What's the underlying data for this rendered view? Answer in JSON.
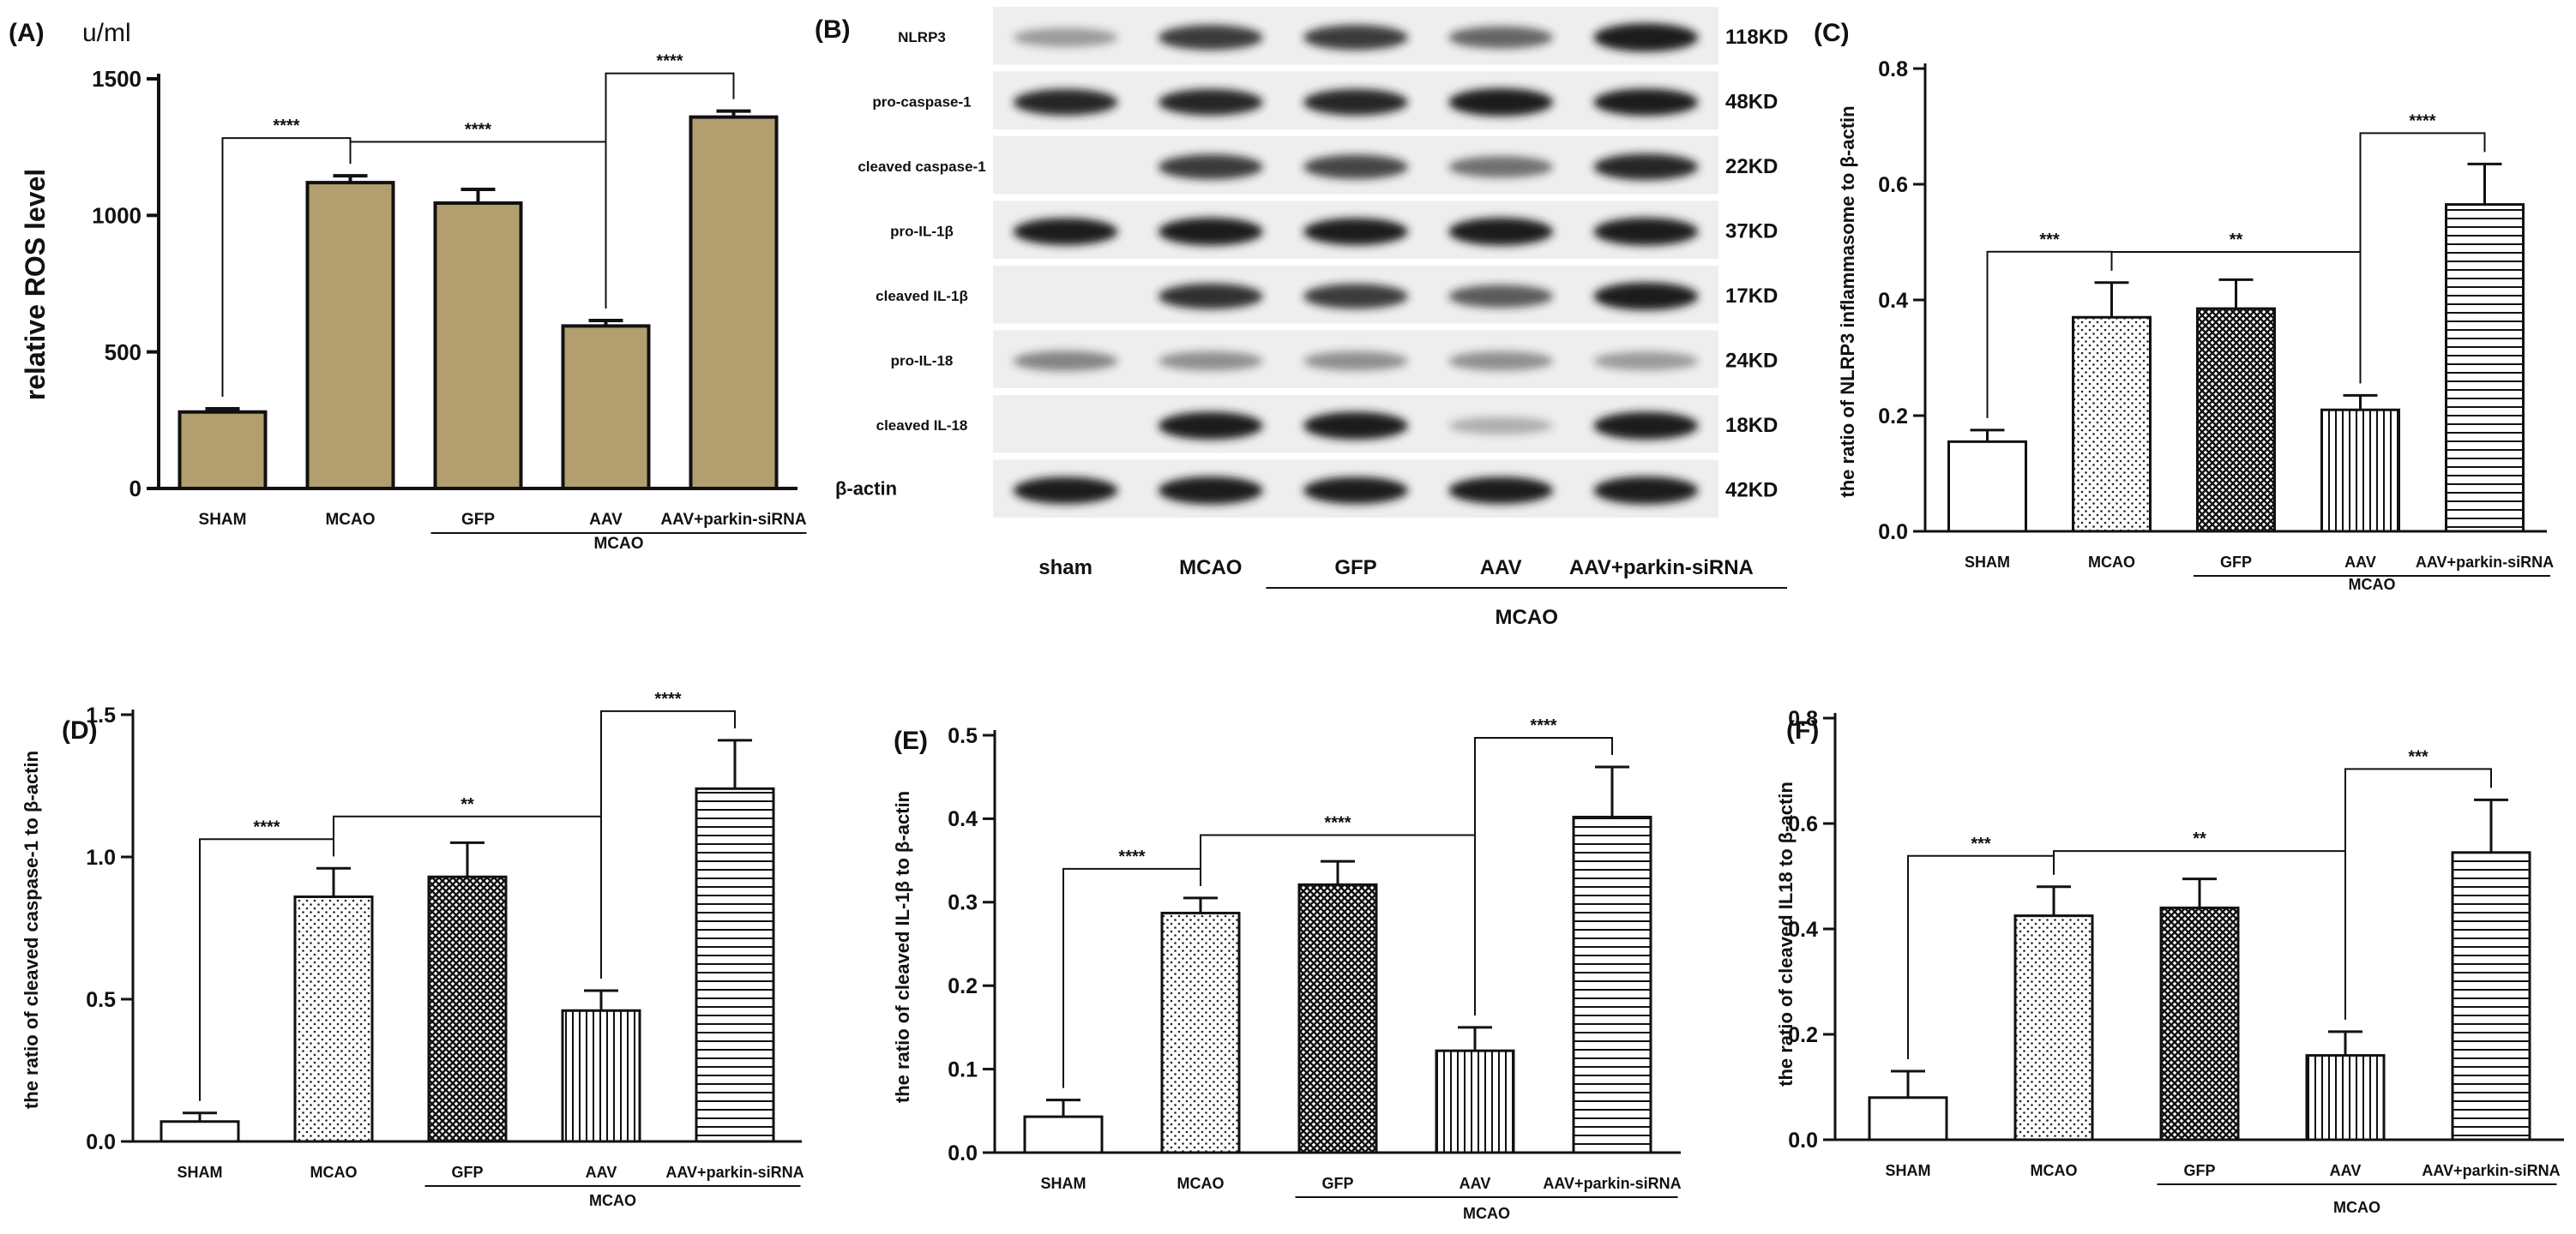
{
  "colors": {
    "olive": "#b29e6f",
    "ink": "#111111",
    "blot_bg": "#eeeeee",
    "band": "#1e1e1e"
  },
  "chart_data": [
    {
      "panel": "(A)",
      "type": "bar",
      "unit_label": "u/ml",
      "ylabel": "relative ROS level",
      "ylim": [
        0,
        1500
      ],
      "yticks": [
        "0",
        "500",
        "1000",
        "1500"
      ],
      "categories": [
        "SHAM",
        "MCAO",
        "GFP",
        "AAV",
        "AAV+parkin-siRNA"
      ],
      "group_label": "MCAO",
      "values": [
        280,
        1120,
        1045,
        595,
        1360
      ],
      "errors": [
        12,
        25,
        50,
        20,
        22
      ],
      "fill": [
        "solid",
        "solid",
        "solid",
        "solid",
        "solid"
      ],
      "significance": [
        {
          "from": 0,
          "to": 1,
          "label": "****"
        },
        {
          "from": 1,
          "to": 3,
          "label": "****"
        },
        {
          "from": 3,
          "to": 4,
          "label": "****"
        }
      ]
    },
    {
      "panel": "(B)",
      "type": "western_blot",
      "lanes": [
        "sham",
        "MCAO",
        "GFP",
        "AAV",
        "AAV+parkin-siRNA"
      ],
      "group_label": "MCAO",
      "rows": [
        {
          "label": "NLRP3",
          "size": "118KD",
          "intensity": [
            0.25,
            0.7,
            0.7,
            0.5,
            0.95
          ]
        },
        {
          "label": "pro-caspase-1",
          "size": "48KD",
          "intensity": [
            0.8,
            0.8,
            0.8,
            0.9,
            0.85
          ]
        },
        {
          "label": "cleaved caspase-1",
          "size": "22KD",
          "intensity": [
            0.0,
            0.7,
            0.65,
            0.45,
            0.8
          ]
        },
        {
          "label": "pro-IL-1β",
          "size": "37KD",
          "intensity": [
            0.85,
            0.9,
            0.85,
            0.9,
            0.9
          ]
        },
        {
          "label": "cleaved IL-1β",
          "size": "17KD",
          "intensity": [
            0.0,
            0.75,
            0.7,
            0.55,
            0.9
          ]
        },
        {
          "label": "pro-IL-18",
          "size": "24KD",
          "intensity": [
            0.35,
            0.3,
            0.3,
            0.3,
            0.25
          ]
        },
        {
          "label": "cleaved IL-18",
          "size": "18KD",
          "intensity": [
            0.0,
            0.9,
            0.9,
            0.15,
            0.9
          ]
        },
        {
          "label": "β-actin",
          "size": "42KD",
          "intensity": [
            0.85,
            0.9,
            0.85,
            0.85,
            0.9
          ]
        }
      ]
    },
    {
      "panel": "(C)",
      "type": "bar",
      "ylabel": "the ratio of NLRP3 inflammasome to β-actin",
      "ylim": [
        0,
        0.8
      ],
      "yticks": [
        "0.0",
        "0.2",
        "0.4",
        "0.6",
        "0.8"
      ],
      "categories": [
        "SHAM",
        "MCAO",
        "GFP",
        "AAV",
        "AAV+parkin-siRNA"
      ],
      "group_label": "MCAO",
      "values": [
        0.155,
        0.37,
        0.385,
        0.21,
        0.565
      ],
      "errors": [
        0.02,
        0.06,
        0.05,
        0.025,
        0.07
      ],
      "fill": [
        "white",
        "dots",
        "cross",
        "vlines",
        "hlines"
      ],
      "significance": [
        {
          "from": 0,
          "to": 1,
          "label": "***"
        },
        {
          "from": 1,
          "to": 3,
          "label": "**"
        },
        {
          "from": 3,
          "to": 4,
          "label": "****"
        }
      ]
    },
    {
      "panel": "(D)",
      "type": "bar",
      "ylabel": "the ratio of cleaved caspase-1 to β-actin",
      "ylim": [
        0,
        1.5
      ],
      "yticks": [
        "0.0",
        "0.5",
        "1.0",
        "1.5"
      ],
      "categories": [
        "SHAM",
        "MCAO",
        "GFP",
        "AAV",
        "AAV+parkin-siRNA"
      ],
      "group_label": "MCAO",
      "values": [
        0.07,
        0.86,
        0.93,
        0.46,
        1.24
      ],
      "errors": [
        0.03,
        0.1,
        0.12,
        0.07,
        0.17
      ],
      "fill": [
        "white",
        "dots",
        "cross",
        "vlines",
        "hlines"
      ],
      "significance": [
        {
          "from": 0,
          "to": 1,
          "label": "****"
        },
        {
          "from": 1,
          "to": 3,
          "label": "**"
        },
        {
          "from": 3,
          "to": 4,
          "label": "****"
        }
      ]
    },
    {
      "panel": "(E)",
      "type": "bar",
      "ylabel": "the ratio of cleaved  IL-1β  to β-actin",
      "ylim": [
        0,
        0.5
      ],
      "yticks": [
        "0.0",
        "0.1",
        "0.2",
        "0.3",
        "0.4",
        "0.5"
      ],
      "categories": [
        "SHAM",
        "MCAO",
        "GFP",
        "AAV",
        "AAV+parkin-siRNA"
      ],
      "group_label": "MCAO",
      "values": [
        0.043,
        0.287,
        0.321,
        0.122,
        0.402
      ],
      "errors": [
        0.02,
        0.018,
        0.028,
        0.028,
        0.06
      ],
      "fill": [
        "white",
        "dots",
        "cross",
        "vlines",
        "hlines"
      ],
      "significance": [
        {
          "from": 0,
          "to": 1,
          "label": "****"
        },
        {
          "from": 1,
          "to": 3,
          "label": "****"
        },
        {
          "from": 3,
          "to": 4,
          "label": "****"
        }
      ]
    },
    {
      "panel": "(F)",
      "type": "bar",
      "ylabel": "the ratio of cleaved IL18 to β-actin",
      "ylim": [
        0,
        0.8
      ],
      "yticks": [
        "0.0",
        "0.2",
        "0.4",
        "0.6",
        "0.8"
      ],
      "categories": [
        "SHAM",
        "MCAO",
        "GFP",
        "AAV",
        "AAV+parkin-siRNA"
      ],
      "group_label": "MCAO",
      "values": [
        0.08,
        0.425,
        0.44,
        0.16,
        0.545
      ],
      "errors": [
        0.05,
        0.055,
        0.055,
        0.045,
        0.1
      ],
      "fill": [
        "white",
        "dots",
        "cross",
        "vlines",
        "hlines"
      ],
      "significance": [
        {
          "from": 0,
          "to": 1,
          "label": "***"
        },
        {
          "from": 1,
          "to": 3,
          "label": "**"
        },
        {
          "from": 3,
          "to": 4,
          "label": "***"
        }
      ]
    }
  ]
}
